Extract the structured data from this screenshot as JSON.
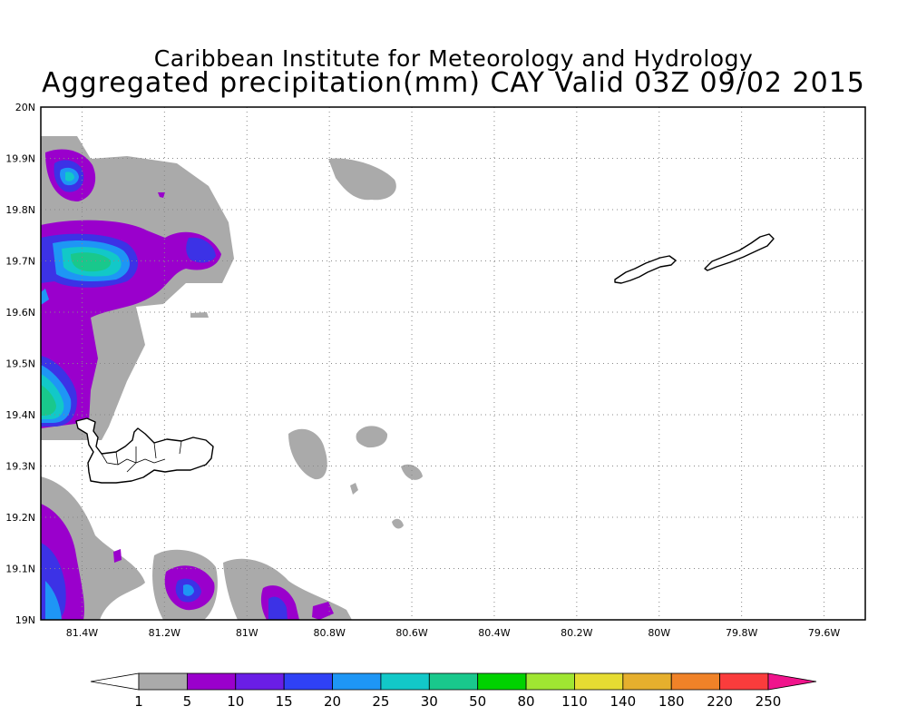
{
  "header": {
    "title": "Caribbean Institute for Meteorology and Hydrology",
    "subtitle": "Aggregated precipitation(mm) CAY Valid 03Z 09/02 2015"
  },
  "map": {
    "lon_range": [
      -81.5,
      -79.5
    ],
    "lat_range": [
      19.0,
      20.0
    ],
    "x_ticks": [
      "81.4W",
      "81.2W",
      "81W",
      "80.8W",
      "80.6W",
      "80.4W",
      "80.2W",
      "80W",
      "79.8W",
      "79.6W"
    ],
    "x_tick_values": [
      -81.4,
      -81.2,
      -81.0,
      -80.8,
      -80.6,
      -80.4,
      -80.2,
      -80.0,
      -79.8,
      -79.6
    ],
    "y_ticks": [
      "19N",
      "19.1N",
      "19.2N",
      "19.3N",
      "19.4N",
      "19.5N",
      "19.6N",
      "19.7N",
      "19.8N",
      "19.9N",
      "20N"
    ],
    "y_tick_values": [
      19.0,
      19.1,
      19.2,
      19.3,
      19.4,
      19.5,
      19.6,
      19.7,
      19.8,
      19.9,
      20.0
    ],
    "grid": true,
    "islands": [
      "grand-cayman",
      "little-cayman",
      "cayman-brac"
    ]
  },
  "colorbar": {
    "labels": [
      "1",
      "5",
      "10",
      "15",
      "20",
      "25",
      "30",
      "50",
      "80",
      "110",
      "140",
      "180",
      "220",
      "250"
    ],
    "colors": [
      "#ffffff",
      "#aaaaaa",
      "#9a00cc",
      "#6a1ee6",
      "#2f41f5",
      "#1e96f5",
      "#12c8c8",
      "#19c88c",
      "#00d200",
      "#a0e632",
      "#e6dc32",
      "#e6af2d",
      "#f08228",
      "#fa3c3c",
      "#f0148c"
    ]
  }
}
